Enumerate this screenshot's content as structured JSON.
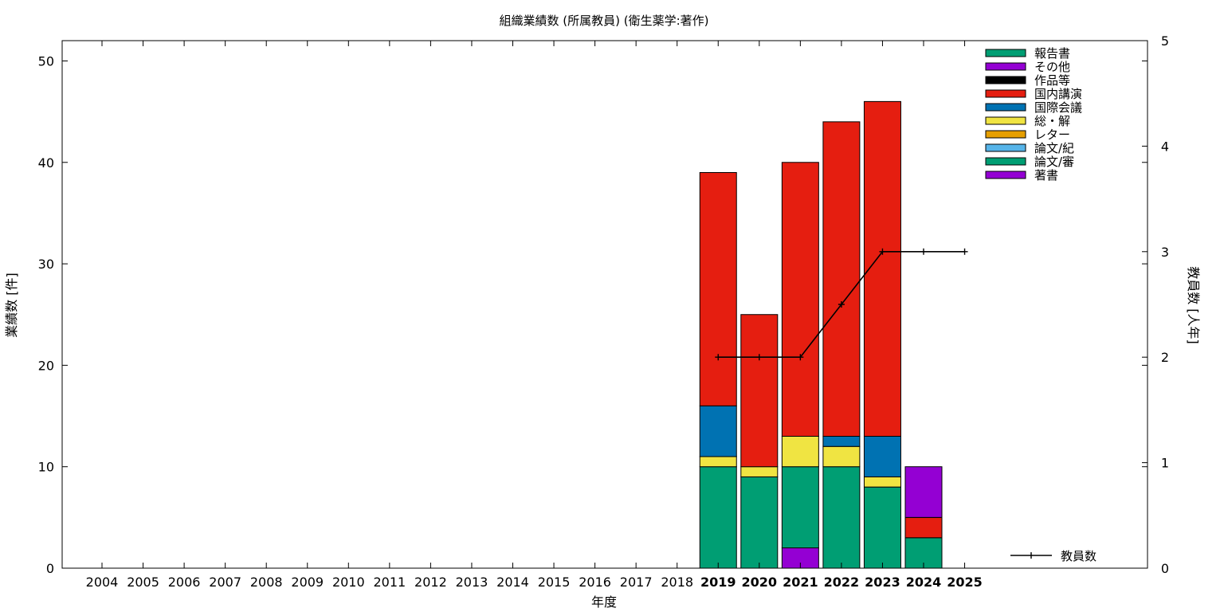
{
  "chart_data": {
    "type": "bar",
    "stacked": true,
    "title": "組織業績数 (所属教員) (衛生薬学:著作)",
    "xlabel": "年度",
    "ylabel": "業績数 [件]",
    "y2label": "教員数 [人年]",
    "ylim": [
      0,
      52
    ],
    "y2lim": [
      0,
      5
    ],
    "yticks": [
      0,
      10,
      20,
      30,
      40,
      50
    ],
    "y2ticks": [
      0,
      1,
      2,
      3,
      4,
      5
    ],
    "categories": [
      "2004",
      "2005",
      "2006",
      "2007",
      "2008",
      "2009",
      "2010",
      "2011",
      "2012",
      "2013",
      "2014",
      "2015",
      "2016",
      "2017",
      "2018",
      "2019",
      "2020",
      "2021",
      "2022",
      "2023",
      "2024",
      "2025"
    ],
    "highlight_from": "2019",
    "series": [
      {
        "name": "著書",
        "color": "#9400d3",
        "values": [
          0,
          0,
          0,
          0,
          0,
          0,
          0,
          0,
          0,
          0,
          0,
          0,
          0,
          0,
          0,
          0,
          0,
          2,
          0,
          0,
          0,
          0
        ]
      },
      {
        "name": "論文/審",
        "color": "#009e73",
        "values": [
          0,
          0,
          0,
          0,
          0,
          0,
          0,
          0,
          0,
          0,
          0,
          0,
          0,
          0,
          0,
          10,
          9,
          8,
          10,
          8,
          3,
          0
        ]
      },
      {
        "name": "論文/紀",
        "color": "#56b4e9",
        "values": [
          0,
          0,
          0,
          0,
          0,
          0,
          0,
          0,
          0,
          0,
          0,
          0,
          0,
          0,
          0,
          0,
          0,
          0,
          0,
          0,
          0,
          0
        ]
      },
      {
        "name": "レター",
        "color": "#e69f00",
        "values": [
          0,
          0,
          0,
          0,
          0,
          0,
          0,
          0,
          0,
          0,
          0,
          0,
          0,
          0,
          0,
          0,
          0,
          0,
          0,
          0,
          0,
          0
        ]
      },
      {
        "name": "総・解",
        "color": "#f0e442",
        "values": [
          0,
          0,
          0,
          0,
          0,
          0,
          0,
          0,
          0,
          0,
          0,
          0,
          0,
          0,
          0,
          1,
          1,
          3,
          2,
          1,
          0,
          0
        ]
      },
      {
        "name": "国際会議",
        "color": "#0072b2",
        "values": [
          0,
          0,
          0,
          0,
          0,
          0,
          0,
          0,
          0,
          0,
          0,
          0,
          0,
          0,
          0,
          5,
          0,
          0,
          1,
          4,
          0,
          0
        ]
      },
      {
        "name": "国内講演",
        "color": "#e51e10",
        "values": [
          0,
          0,
          0,
          0,
          0,
          0,
          0,
          0,
          0,
          0,
          0,
          0,
          0,
          0,
          0,
          23,
          15,
          27,
          31,
          33,
          2,
          0
        ]
      },
      {
        "name": "作品等",
        "color": "#000000",
        "values": [
          0,
          0,
          0,
          0,
          0,
          0,
          0,
          0,
          0,
          0,
          0,
          0,
          0,
          0,
          0,
          0,
          0,
          0,
          0,
          0,
          0,
          0
        ]
      },
      {
        "name": "その他",
        "color": "#9400d3",
        "values": [
          0,
          0,
          0,
          0,
          0,
          0,
          0,
          0,
          0,
          0,
          0,
          0,
          0,
          0,
          0,
          0,
          0,
          0,
          0,
          0,
          5,
          0
        ]
      },
      {
        "name": "報告書",
        "color": "#009e73",
        "values": [
          0,
          0,
          0,
          0,
          0,
          0,
          0,
          0,
          0,
          0,
          0,
          0,
          0,
          0,
          0,
          0,
          0,
          0,
          0,
          0,
          0,
          0
        ]
      }
    ],
    "line_series": {
      "name": "教員数",
      "axis": "y2",
      "color": "#000000",
      "x": [
        "2019",
        "2020",
        "2021",
        "2022",
        "2023",
        "2024",
        "2025"
      ],
      "values": [
        2,
        2,
        2,
        2.5,
        3,
        3,
        3
      ]
    },
    "legend_position": "top-right",
    "line_legend_position": "bottom-right",
    "grid": false
  }
}
